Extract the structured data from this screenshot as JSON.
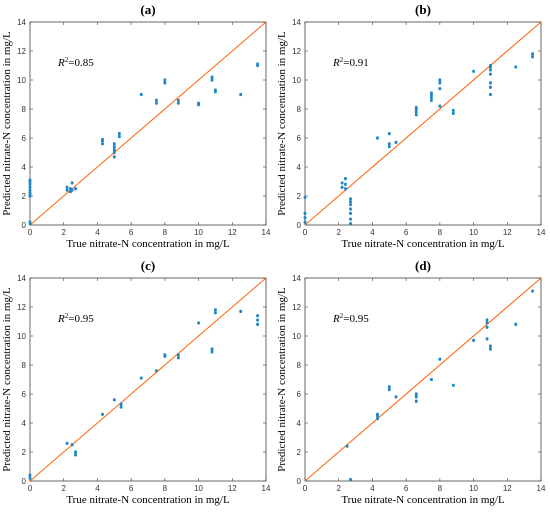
{
  "colors": {
    "points": "#1f86c6",
    "fit_line": "#ff6a13",
    "axes": "#444444"
  },
  "chart_data": [
    {
      "type": "scatter",
      "panel_label": "(a)",
      "annotation": "R²=0.85",
      "annotation_parts": {
        "prefix": "R",
        "sup": "2",
        "suffix": "=0.85"
      },
      "xlabel": "True nitrate-N concentration in mg/L",
      "ylabel": "Predicted nitrate-N concentration in mg/L",
      "xlim": [
        0,
        14
      ],
      "ylim": [
        0,
        14
      ],
      "xticks": [
        0,
        2,
        4,
        6,
        8,
        10,
        12,
        14
      ],
      "yticks": [
        0,
        2,
        4,
        6,
        8,
        10,
        12,
        14
      ],
      "reference_line": {
        "x": [
          0,
          14
        ],
        "y": [
          0,
          14
        ]
      },
      "series": [
        {
          "x": [
            0,
            0,
            0,
            0,
            0,
            0,
            0,
            0,
            0,
            0,
            2.2,
            2.2,
            2.4,
            2.4,
            2.5,
            2.5,
            2.7,
            4.3,
            4.3,
            4.3,
            5,
            5,
            5,
            5,
            5,
            5.3,
            5.3,
            6.6,
            7.5,
            7.5,
            8,
            8,
            8.8,
            8.8,
            10,
            10,
            10.8,
            10.8,
            11,
            11,
            12.5,
            13.5,
            13.5
          ],
          "y": [
            0.1,
            0.2,
            2,
            2.1,
            2.2,
            2.4,
            2.6,
            2.8,
            3,
            3.1,
            2.4,
            2.6,
            2.3,
            2.5,
            2.4,
            2.9,
            2.5,
            5.6,
            5.8,
            5.9,
            4.7,
            5,
            5.2,
            5.4,
            5.6,
            6.1,
            6.3,
            9,
            8.4,
            8.6,
            9.8,
            10,
            8.4,
            8.6,
            8.3,
            8.4,
            10,
            10.2,
            9.2,
            9.3,
            9,
            11,
            11.1
          ]
        }
      ]
    },
    {
      "type": "scatter",
      "panel_label": "(b)",
      "annotation": "R²=0.91",
      "annotation_parts": {
        "prefix": "R",
        "sup": "2",
        "suffix": "=0.91"
      },
      "xlabel": "True nitrate-N concentration in mg/L",
      "ylabel": "Predicted nitrate-N concentration in mg/L",
      "xlim": [
        0,
        14
      ],
      "ylim": [
        0,
        14
      ],
      "xticks": [
        0,
        2,
        4,
        6,
        8,
        10,
        12,
        14
      ],
      "yticks": [
        0,
        2,
        4,
        6,
        8,
        10,
        12,
        14
      ],
      "reference_line": {
        "x": [
          0,
          14
        ],
        "y": [
          0,
          14
        ]
      },
      "series": [
        {
          "x": [
            0,
            0,
            0,
            0,
            2.2,
            2.2,
            2.4,
            2.4,
            2.4,
            2.7,
            2.7,
            2.7,
            2.7,
            2.7,
            2.7,
            2.7,
            4.3,
            5,
            5,
            5,
            5.4,
            6.6,
            6.6,
            6.6,
            6.6,
            7.5,
            7.5,
            7.5,
            7.5,
            8,
            8,
            8,
            8,
            8.8,
            8.8,
            10,
            11,
            11,
            11,
            11,
            11,
            11,
            11,
            12.5,
            13.5,
            13.5
          ],
          "y": [
            0.2,
            0.5,
            0.8,
            1.9,
            2.6,
            2.9,
            2.5,
            2.8,
            3.2,
            0.1,
            0.4,
            0.8,
            1.1,
            1.4,
            1.6,
            1.8,
            6,
            5.4,
            5.6,
            6.3,
            5.7,
            7.6,
            7.8,
            8,
            8.1,
            8.6,
            8.8,
            9,
            9.1,
            8.2,
            9.4,
            9.8,
            10,
            7.7,
            7.9,
            10.6,
            9,
            9.5,
            9.8,
            10.4,
            10.7,
            10.9,
            11,
            10.9,
            11.6,
            11.8
          ]
        }
      ]
    },
    {
      "type": "scatter",
      "panel_label": "(c)",
      "annotation": "R²=0.95",
      "annotation_parts": {
        "prefix": "R",
        "sup": "2",
        "suffix": "=0.95"
      },
      "xlabel": "True nitrate-N concentration in mg/L",
      "ylabel": "Predicted nitrate-N concentration in mg/L",
      "xlim": [
        0,
        14
      ],
      "ylim": [
        0,
        14
      ],
      "xticks": [
        0,
        2,
        4,
        6,
        8,
        10,
        12,
        14
      ],
      "yticks": [
        0,
        2,
        4,
        6,
        8,
        10,
        12,
        14
      ],
      "reference_line": {
        "x": [
          0,
          14
        ],
        "y": [
          0,
          14
        ]
      },
      "series": [
        {
          "x": [
            0,
            0,
            2.2,
            2.5,
            2.7,
            2.7,
            4.3,
            5,
            5.4,
            5.4,
            6.6,
            7.5,
            8,
            8,
            8.8,
            8.8,
            10,
            10.8,
            10.8,
            11,
            11,
            12.5,
            13.5,
            13.5,
            13.5
          ],
          "y": [
            0.2,
            0.4,
            2.6,
            2.5,
            1.8,
            2,
            4.6,
            5.6,
            5.1,
            5.3,
            7.1,
            7.6,
            8.6,
            8.7,
            8.5,
            8.7,
            10.9,
            8.9,
            9.1,
            11.6,
            11.8,
            11.7,
            10.8,
            11.1,
            11.4
          ]
        }
      ]
    },
    {
      "type": "scatter",
      "panel_label": "(d)",
      "annotation": "R²=0.95",
      "annotation_parts": {
        "prefix": "R",
        "sup": "2",
        "suffix": "=0.95"
      },
      "xlabel": "True nitrate-N concentration in mg/L",
      "ylabel": "Predicted nitrate-N concentration in mg/L",
      "xlim": [
        0,
        14
      ],
      "ylim": [
        0,
        14
      ],
      "xticks": [
        0,
        2,
        4,
        6,
        8,
        10,
        12,
        14
      ],
      "yticks": [
        0,
        2,
        4,
        6,
        8,
        10,
        12,
        14
      ],
      "reference_line": {
        "x": [
          0,
          14
        ],
        "y": [
          0,
          14
        ]
      },
      "series": [
        {
          "x": [
            2.5,
            2.7,
            4.3,
            4.3,
            4.3,
            5,
            5,
            5.4,
            6.6,
            6.6,
            6.6,
            7.5,
            8,
            8.8,
            10,
            10.8,
            10.8,
            10.8,
            10.8,
            11,
            11,
            12.5,
            13.5
          ],
          "y": [
            2.4,
            0.1,
            4.3,
            4.5,
            4.6,
            6.3,
            6.5,
            5.8,
            5.5,
            5.8,
            6,
            7,
            8.4,
            6.6,
            9.7,
            9.8,
            10.6,
            10.9,
            11.1,
            9.1,
            9.3,
            10.8,
            13.1
          ]
        }
      ]
    }
  ]
}
